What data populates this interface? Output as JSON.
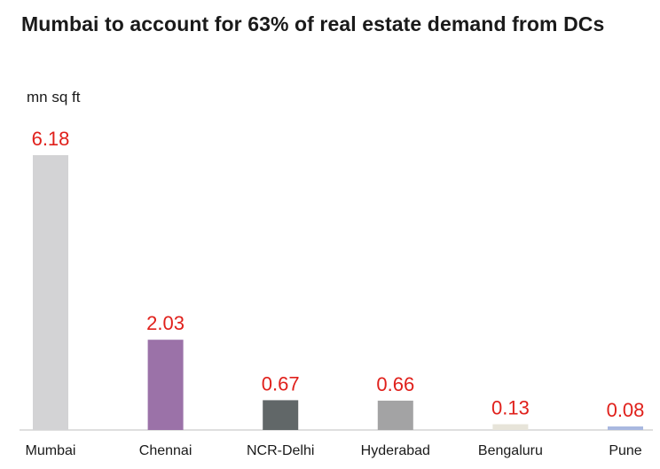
{
  "chart_data": {
    "type": "bar",
    "title": "Mumbai to account for 63% of real estate demand from DCs",
    "ylabel": "mn sq ft",
    "xlabel": "",
    "categories": [
      "Mumbai",
      "Chennai",
      "NCR-Delhi",
      "Hyderabad",
      "Bengaluru",
      "Pune"
    ],
    "values": [
      6.18,
      2.03,
      0.67,
      0.66,
      0.13,
      0.08
    ],
    "value_labels": [
      "6.18",
      "2.03",
      "0.67",
      "0.66",
      "0.13",
      "0.08"
    ],
    "ylim": [
      0,
      6.18
    ],
    "grid": false,
    "legend": "none",
    "bar_colors": [
      "#d3d3d5",
      "#9b72a8",
      "#616768",
      "#a3a3a4",
      "#e7e4d9",
      "#a9b8e0"
    ],
    "label_color": "#e0201b",
    "baseline_color": "#bfbfbf"
  }
}
